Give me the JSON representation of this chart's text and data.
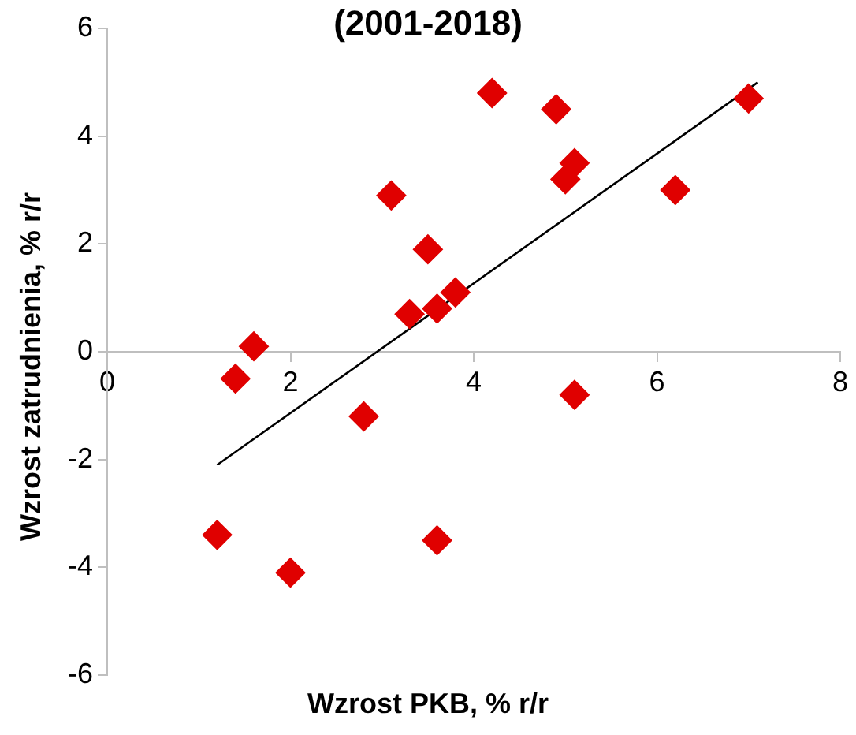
{
  "chart_data": {
    "type": "scatter",
    "title": "(2001-2018)",
    "xlabel": "Wzrost PKB, % r/r",
    "ylabel": "Wzrost zatrudnienia, % r/r",
    "xlim": [
      0,
      8
    ],
    "xticks": [
      0,
      2,
      4,
      6,
      8
    ],
    "ylim": [
      -6,
      6
    ],
    "yticks": [
      -6,
      -4,
      -2,
      0,
      2,
      4,
      6
    ],
    "grid": false,
    "legend": false,
    "series": [
      {
        "color": "#e00000",
        "marker": "diamond",
        "x": [
          1.6,
          1.4,
          1.2,
          2.0,
          2.8,
          3.6,
          5.1,
          4.2,
          4.9,
          5.1,
          5.0,
          6.2,
          7.0,
          3.1,
          3.5,
          3.8,
          3.6,
          3.3
        ],
        "values": [
          0.1,
          -0.5,
          -3.4,
          -4.1,
          -1.2,
          -3.5,
          -0.8,
          4.8,
          4.5,
          3.5,
          3.2,
          3.0,
          4.7,
          2.9,
          1.9,
          1.1,
          0.8,
          0.7
        ]
      },
      {
        "type": "line",
        "color": "#000000",
        "marker": "none",
        "x": [
          1.2,
          7.1
        ],
        "values": [
          -2.1,
          5.0
        ]
      }
    ]
  }
}
